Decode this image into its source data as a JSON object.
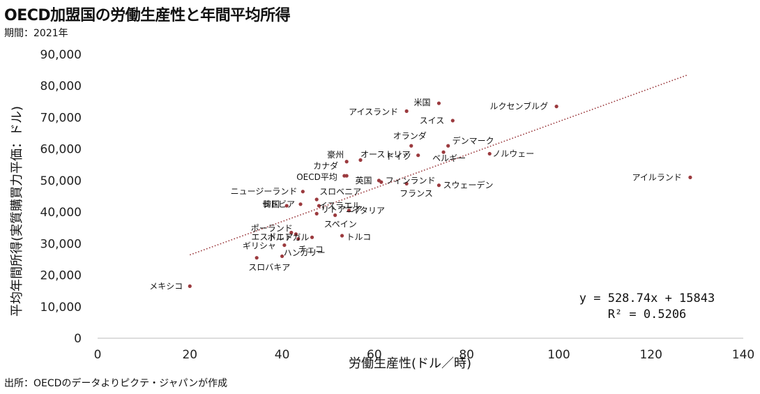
{
  "header": {
    "title": "OECD加盟国の労働生産性と年間平均所得",
    "subtitle": "期間：2021年"
  },
  "footer": {
    "source": "出所：OECDのデータよりピクテ・ジャパンが作成"
  },
  "chart_data": {
    "type": "scatter",
    "xlabel": "労働生産性(ドル／時)",
    "ylabel": "平均年間所得(実質購買力平価：ドル)",
    "xlim": [
      0,
      140
    ],
    "ylim": [
      0,
      90000
    ],
    "xticks": [
      0,
      20,
      40,
      60,
      80,
      100,
      120,
      140
    ],
    "xtick_labels": [
      "0",
      "20",
      "40",
      "60",
      "80",
      "100",
      "120",
      "140"
    ],
    "yticks": [
      0,
      10000,
      20000,
      30000,
      40000,
      50000,
      60000,
      70000,
      80000,
      90000
    ],
    "ytick_labels": [
      "0",
      "10,000",
      "20,000",
      "30,000",
      "40,000",
      "50,000",
      "60,000",
      "70,000",
      "80,000",
      "90,000"
    ],
    "grid": false,
    "marker_color": "#9b3a3e",
    "trendline": {
      "slope": 528.74,
      "intercept": 15843,
      "x_range": [
        20,
        128
      ],
      "color": "#9b3a3e",
      "style": "dotted"
    },
    "annotations": {
      "equation": "y = 528.74x + 15843",
      "r2": "R² = 0.5206"
    },
    "points": [
      {
        "label": "メキシコ",
        "x": 20,
        "y": 16500
      },
      {
        "label": "米国",
        "x": 74,
        "y": 74500
      },
      {
        "label": "アイスランド",
        "x": 67,
        "y": 72000
      },
      {
        "label": "ルクセンブルグ",
        "x": 99.5,
        "y": 73500
      },
      {
        "label": "スイス",
        "x": 77,
        "y": 69000
      },
      {
        "label": "オランダ",
        "x": 68,
        "y": 61000
      },
      {
        "label": "デンマーク",
        "x": 76,
        "y": 61000
      },
      {
        "label": "豪州",
        "x": 54,
        "y": 56000
      },
      {
        "label": "オーストリア",
        "x": 57,
        "y": 56500
      },
      {
        "label": "ドイツ",
        "x": 69.5,
        "y": 58000
      },
      {
        "label": "ベルギー",
        "x": 75,
        "y": 59000
      },
      {
        "label": "ノルウェー",
        "x": 85,
        "y": 58500
      },
      {
        "label": "カナダ",
        "x": 54,
        "y": 51500
      },
      {
        "label": "OECD平均",
        "x": 53.5,
        "y": 51500
      },
      {
        "label": "英国",
        "x": 61,
        "y": 50000
      },
      {
        "label": "フィンランド",
        "x": 61.5,
        "y": 49500
      },
      {
        "label": "フランス",
        "x": 67,
        "y": 49000
      },
      {
        "label": "スウェーデン",
        "x": 74,
        "y": 48500
      },
      {
        "label": "アイルランド",
        "x": 128.5,
        "y": 51000
      },
      {
        "label": "ニュージーランド",
        "x": 44.5,
        "y": 46500
      },
      {
        "label": "韓国",
        "x": 41,
        "y": 42000
      },
      {
        "label": "スロベニア",
        "x": 47.5,
        "y": 44000
      },
      {
        "label": "イスラエル",
        "x": 48,
        "y": 42000
      },
      {
        "label": "ラトビア",
        "x": 44,
        "y": 42500
      },
      {
        "label": "イタリア",
        "x": 54.5,
        "y": 40500
      },
      {
        "label": "スペイン",
        "x": 51.5,
        "y": 39000
      },
      {
        "label": "ポーランド",
        "x": 42,
        "y": 33500
      },
      {
        "label": "リトアニア",
        "x": 47.5,
        "y": 39500
      },
      {
        "label": "エストニア",
        "x": 43,
        "y": 33000
      },
      {
        "label": "トルコ",
        "x": 53,
        "y": 32500
      },
      {
        "label": "ポルトガル",
        "x": 46.5,
        "y": 32000
      },
      {
        "label": "チェコ",
        "x": 43.5,
        "y": 31500
      },
      {
        "label": "ギリシャ",
        "x": 40.5,
        "y": 29500
      },
      {
        "label": "ハンガリー",
        "x": 40,
        "y": 26000
      },
      {
        "label": "スロバキア",
        "x": 34.5,
        "y": 25500
      }
    ]
  }
}
